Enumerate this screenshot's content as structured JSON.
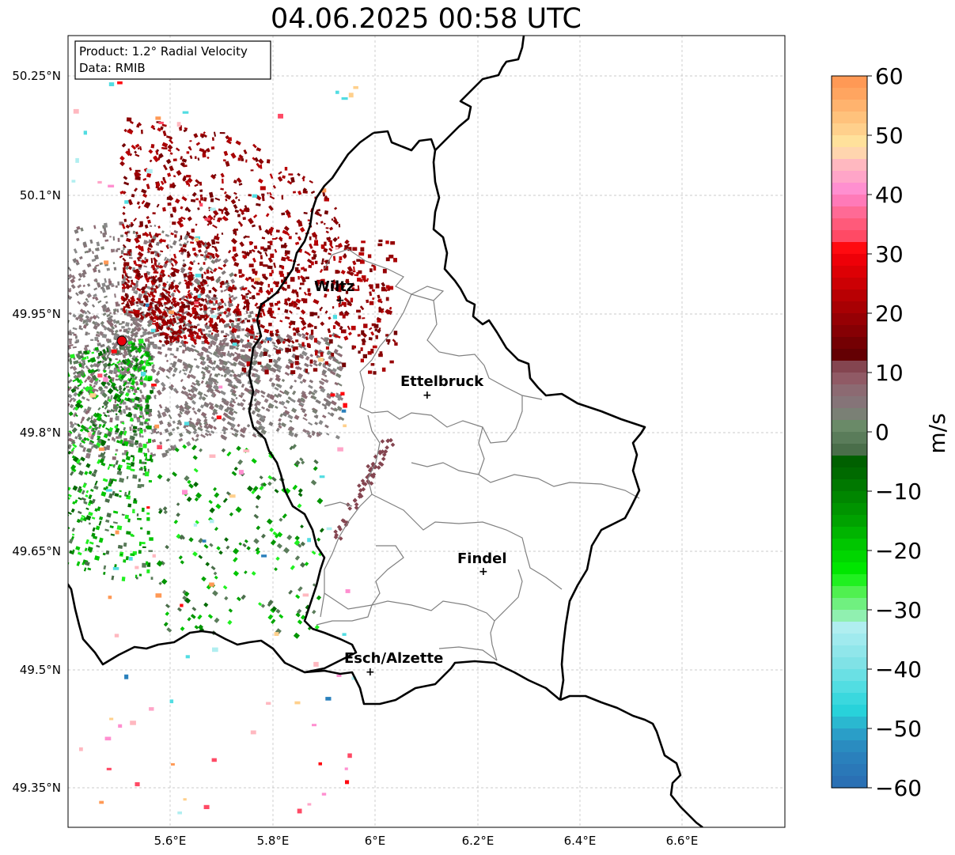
{
  "title": "04.06.2025 00:58 UTC",
  "info": {
    "product": "Product: 1.2° Radial Velocity",
    "data_source": "Data: RMIB"
  },
  "axes": {
    "lon_ticks": [
      "5.6°E",
      "5.8°E",
      "6°E",
      "6.2°E",
      "6.4°E",
      "6.6°E"
    ],
    "lat_ticks": [
      "50.25°N",
      "50.1°N",
      "49.95°N",
      "49.8°N",
      "49.65°N",
      "49.5°N",
      "49.35°N"
    ]
  },
  "cities": [
    {
      "name": "Wiltz"
    },
    {
      "name": "Ettelbruck"
    },
    {
      "name": "Findel"
    },
    {
      "name": "Esch/Alzette"
    }
  ],
  "colorbar": {
    "unit": "m/s",
    "ticks": [
      "60",
      "50",
      "40",
      "30",
      "20",
      "10",
      "0",
      "−10",
      "−20",
      "−30",
      "−40",
      "−50",
      "−60"
    ],
    "min": -60,
    "max": 60
  },
  "colors": {
    "radar_site": "#e8000b",
    "border": "#000000",
    "canton": "#808080"
  }
}
